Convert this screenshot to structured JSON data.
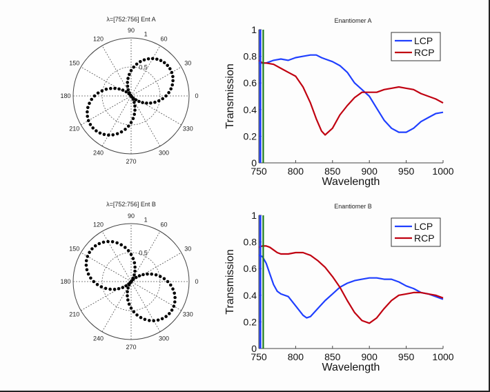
{
  "chart_data": [
    {
      "id": "polar-a",
      "type": "scatter",
      "subtype": "polar",
      "title": "λ=[752:756] Ent A",
      "angle_ticks": [
        "0",
        "30",
        "60",
        "90",
        "120",
        "150",
        "180",
        "210",
        "240",
        "270",
        "300",
        "330"
      ],
      "radial_ticks": [
        "0.5",
        "1"
      ],
      "rlim": [
        0,
        1
      ],
      "grid": true,
      "marker_color": "#000000",
      "lobe_axis_deg": 38,
      "lobe_max": [
        0.82,
        0.86
      ]
    },
    {
      "id": "polar-b",
      "type": "scatter",
      "subtype": "polar",
      "title": "λ=[752:756] Ent B",
      "angle_ticks": [
        "0",
        "30",
        "60",
        "90",
        "120",
        "150",
        "180",
        "210",
        "240",
        "270",
        "300",
        "330"
      ],
      "radial_ticks": [
        "0.5",
        "1"
      ],
      "rlim": [
        0,
        1
      ],
      "grid": true,
      "marker_color": "#000000",
      "lobe_axis_deg": 142,
      "lobe_max": [
        0.88,
        0.86
      ]
    },
    {
      "id": "line-a",
      "type": "line",
      "title": "Enantiomer A",
      "xlabel": "Wavelength",
      "ylabel": "Transmission",
      "xlim": [
        750,
        1000
      ],
      "ylim": [
        0,
        1
      ],
      "xticks": [
        "750",
        "800",
        "850",
        "900",
        "950",
        "1000"
      ],
      "yticks": [
        "0",
        "0.2",
        "0.4",
        "0.6",
        "0.8",
        "1"
      ],
      "legend": "top-right",
      "grid": false,
      "markers_vertical": [
        {
          "x": 752,
          "color": "#1f3fff"
        },
        {
          "x": 756,
          "color": "#1a7a1a"
        }
      ],
      "x": [
        750,
        755,
        760,
        770,
        780,
        790,
        800,
        810,
        820,
        828,
        835,
        840,
        850,
        860,
        870,
        880,
        890,
        900,
        910,
        920,
        930,
        940,
        950,
        960,
        970,
        980,
        990,
        1000
      ],
      "series": [
        {
          "name": "LCP",
          "color": "#1f3fff",
          "values": [
            0.75,
            0.75,
            0.75,
            0.77,
            0.78,
            0.77,
            0.79,
            0.8,
            0.81,
            0.81,
            0.79,
            0.78,
            0.76,
            0.73,
            0.68,
            0.6,
            0.55,
            0.5,
            0.41,
            0.32,
            0.26,
            0.23,
            0.23,
            0.26,
            0.31,
            0.34,
            0.37,
            0.38
          ]
        },
        {
          "name": "RCP",
          "color": "#c00010",
          "values": [
            0.77,
            0.75,
            0.75,
            0.74,
            0.71,
            0.68,
            0.65,
            0.57,
            0.45,
            0.33,
            0.24,
            0.21,
            0.26,
            0.36,
            0.43,
            0.49,
            0.53,
            0.53,
            0.53,
            0.55,
            0.56,
            0.57,
            0.56,
            0.55,
            0.52,
            0.5,
            0.48,
            0.45
          ]
        }
      ]
    },
    {
      "id": "line-b",
      "type": "line",
      "title": "Enantiomer B",
      "xlabel": "Wavelength",
      "ylabel": "Transmission",
      "xlim": [
        750,
        1000
      ],
      "ylim": [
        0,
        1
      ],
      "xticks": [
        "750",
        "800",
        "850",
        "900",
        "950",
        "1000"
      ],
      "yticks": [
        "0",
        "0.2",
        "0.4",
        "0.6",
        "0.8",
        "1"
      ],
      "legend": "top-right",
      "grid": false,
      "markers_vertical": [
        {
          "x": 752,
          "color": "#1f3fff"
        },
        {
          "x": 756,
          "color": "#1a7a1a"
        }
      ],
      "x": [
        750,
        755,
        760,
        765,
        770,
        775,
        780,
        790,
        800,
        810,
        815,
        820,
        830,
        840,
        850,
        860,
        870,
        880,
        890,
        900,
        910,
        920,
        930,
        940,
        950,
        960,
        970,
        980,
        990,
        1000
      ],
      "series": [
        {
          "name": "LCP",
          "color": "#1f3fff",
          "values": [
            0.7,
            0.69,
            0.64,
            0.56,
            0.48,
            0.43,
            0.41,
            0.39,
            0.32,
            0.25,
            0.23,
            0.24,
            0.3,
            0.36,
            0.41,
            0.46,
            0.49,
            0.51,
            0.52,
            0.53,
            0.53,
            0.52,
            0.52,
            0.5,
            0.47,
            0.45,
            0.42,
            0.41,
            0.39,
            0.37
          ]
        },
        {
          "name": "RCP",
          "color": "#c00010",
          "values": [
            0.76,
            0.77,
            0.77,
            0.76,
            0.74,
            0.72,
            0.71,
            0.71,
            0.72,
            0.72,
            0.71,
            0.7,
            0.66,
            0.61,
            0.54,
            0.46,
            0.36,
            0.27,
            0.21,
            0.19,
            0.23,
            0.3,
            0.36,
            0.4,
            0.41,
            0.42,
            0.42,
            0.41,
            0.4,
            0.38
          ]
        }
      ]
    }
  ]
}
